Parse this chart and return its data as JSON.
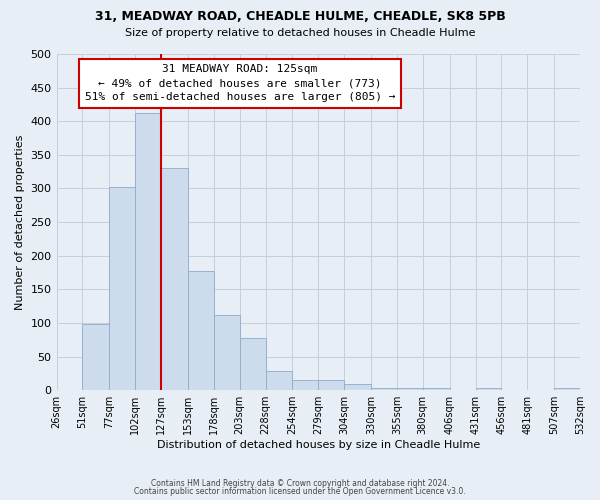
{
  "title": "31, MEADWAY ROAD, CHEADLE HULME, CHEADLE, SK8 5PB",
  "subtitle": "Size of property relative to detached houses in Cheadle Hulme",
  "xlabel": "Distribution of detached houses by size in Cheadle Hulme",
  "ylabel": "Number of detached properties",
  "bin_edges": [
    26,
    51,
    77,
    102,
    127,
    153,
    178,
    203,
    228,
    254,
    279,
    304,
    330,
    355,
    380,
    406,
    431,
    456,
    481,
    507,
    532
  ],
  "bin_labels": [
    "26sqm",
    "51sqm",
    "77sqm",
    "102sqm",
    "127sqm",
    "153sqm",
    "178sqm",
    "203sqm",
    "228sqm",
    "254sqm",
    "279sqm",
    "304sqm",
    "330sqm",
    "355sqm",
    "380sqm",
    "406sqm",
    "431sqm",
    "456sqm",
    "481sqm",
    "507sqm",
    "532sqm"
  ],
  "counts": [
    0,
    98,
    302,
    412,
    330,
    178,
    112,
    77,
    28,
    15,
    15,
    9,
    3,
    3,
    4,
    0,
    3,
    0,
    0,
    3
  ],
  "bar_color": "#ccdcec",
  "bar_edge_color": "#90aacc",
  "vline_x": 127,
  "vline_color": "#cc0000",
  "annotation_text": "31 MEADWAY ROAD: 125sqm\n← 49% of detached houses are smaller (773)\n51% of semi-detached houses are larger (805) →",
  "annotation_box_facecolor": "#ffffff",
  "annotation_box_edgecolor": "#cc0000",
  "ylim": [
    0,
    500
  ],
  "yticks": [
    0,
    50,
    100,
    150,
    200,
    250,
    300,
    350,
    400,
    450,
    500
  ],
  "footer1": "Contains HM Land Registry data © Crown copyright and database right 2024.",
  "footer2": "Contains public sector information licensed under the Open Government Licence v3.0.",
  "fig_facecolor": "#e8eef5",
  "plot_facecolor": "#e8eef5",
  "grid_color": "#c5d0dc"
}
